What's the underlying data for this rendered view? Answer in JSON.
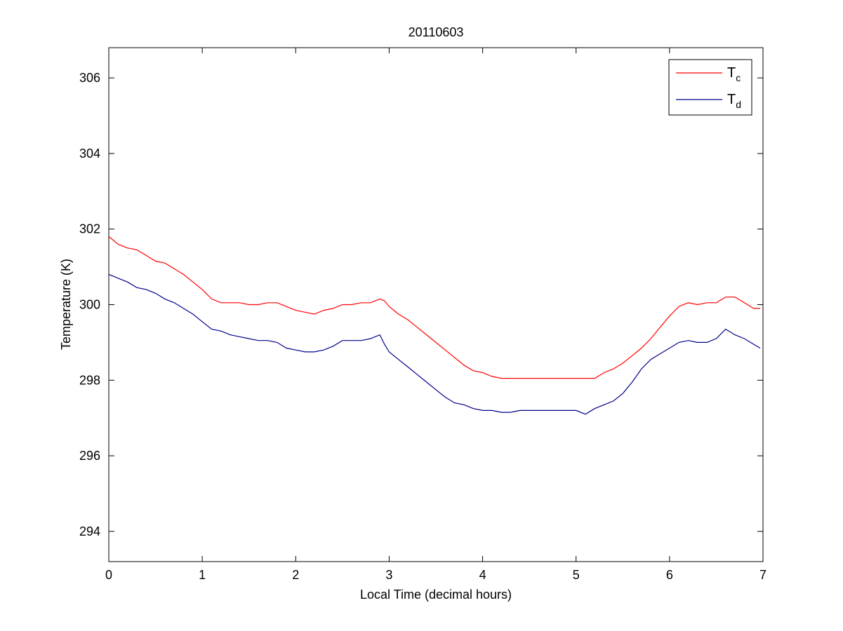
{
  "chart_data": {
    "type": "line",
    "title": "20110603",
    "xlabel": "Local Time (decimal hours)",
    "ylabel": "Temperature (K)",
    "xlim": [
      0,
      7
    ],
    "ylim": [
      293.2,
      306.8
    ],
    "xticks": [
      "0",
      "1",
      "2",
      "3",
      "4",
      "5",
      "6",
      "7"
    ],
    "yticks": [
      "294",
      "296",
      "298",
      "300",
      "302",
      "304",
      "306"
    ],
    "grid": false,
    "legend_position": "top-right",
    "series": [
      {
        "name": "Tc",
        "name_main": "T",
        "name_sub": "c",
        "color": "#ff0000",
        "x": [
          0,
          0.05,
          0.1,
          0.2,
          0.3,
          0.4,
          0.5,
          0.6,
          0.7,
          0.8,
          0.9,
          1.0,
          1.1,
          1.2,
          1.3,
          1.4,
          1.5,
          1.6,
          1.7,
          1.8,
          1.9,
          2.0,
          2.1,
          2.2,
          2.3,
          2.4,
          2.5,
          2.6,
          2.7,
          2.8,
          2.9,
          2.95,
          3.0,
          3.1,
          3.2,
          3.3,
          3.4,
          3.5,
          3.6,
          3.7,
          3.8,
          3.9,
          4.0,
          4.1,
          4.2,
          4.3,
          4.4,
          4.5,
          4.6,
          4.7,
          4.8,
          4.9,
          5.0,
          5.1,
          5.2,
          5.3,
          5.4,
          5.5,
          5.6,
          5.7,
          5.8,
          5.9,
          6.0,
          6.1,
          6.2,
          6.3,
          6.4,
          6.5,
          6.6,
          6.7,
          6.8,
          6.9,
          6.97
        ],
        "y": [
          301.8,
          301.7,
          301.6,
          301.5,
          301.45,
          301.3,
          301.15,
          301.1,
          300.95,
          300.8,
          300.6,
          300.4,
          300.15,
          300.05,
          300.05,
          300.05,
          300.0,
          300.0,
          300.05,
          300.05,
          299.95,
          299.85,
          299.8,
          299.75,
          299.85,
          299.9,
          300.0,
          300.0,
          300.05,
          300.05,
          300.15,
          300.1,
          299.95,
          299.75,
          299.6,
          299.4,
          299.2,
          299.0,
          298.8,
          298.6,
          298.4,
          298.25,
          298.2,
          298.1,
          298.05,
          298.05,
          298.05,
          298.05,
          298.05,
          298.05,
          298.05,
          298.05,
          298.05,
          298.05,
          298.05,
          298.2,
          298.3,
          298.45,
          298.65,
          298.85,
          299.1,
          299.4,
          299.7,
          299.95,
          300.05,
          300.0,
          300.05,
          300.05,
          300.2,
          300.2,
          300.05,
          299.9,
          299.9
        ]
      },
      {
        "name": "Td",
        "name_main": "T",
        "name_sub": "d",
        "color": "#00008b",
        "x": [
          0,
          0.05,
          0.1,
          0.2,
          0.3,
          0.4,
          0.5,
          0.6,
          0.7,
          0.8,
          0.9,
          1.0,
          1.1,
          1.2,
          1.3,
          1.4,
          1.5,
          1.6,
          1.7,
          1.8,
          1.9,
          2.0,
          2.1,
          2.2,
          2.3,
          2.4,
          2.5,
          2.6,
          2.7,
          2.8,
          2.9,
          2.95,
          3.0,
          3.1,
          3.2,
          3.3,
          3.4,
          3.5,
          3.6,
          3.7,
          3.8,
          3.9,
          4.0,
          4.1,
          4.2,
          4.3,
          4.4,
          4.5,
          4.6,
          4.7,
          4.8,
          4.9,
          5.0,
          5.1,
          5.2,
          5.3,
          5.4,
          5.5,
          5.6,
          5.7,
          5.8,
          5.9,
          6.0,
          6.1,
          6.2,
          6.3,
          6.4,
          6.5,
          6.6,
          6.7,
          6.8,
          6.9,
          6.97
        ],
        "y": [
          300.8,
          300.75,
          300.7,
          300.6,
          300.45,
          300.4,
          300.3,
          300.15,
          300.05,
          299.9,
          299.75,
          299.55,
          299.35,
          299.3,
          299.2,
          299.15,
          299.1,
          299.05,
          299.05,
          299.0,
          298.85,
          298.8,
          298.75,
          298.75,
          298.8,
          298.9,
          299.05,
          299.05,
          299.05,
          299.1,
          299.2,
          298.95,
          298.75,
          298.55,
          298.35,
          298.15,
          297.95,
          297.75,
          297.55,
          297.4,
          297.35,
          297.25,
          297.2,
          297.2,
          297.15,
          297.15,
          297.2,
          297.2,
          297.2,
          297.2,
          297.2,
          297.2,
          297.2,
          297.1,
          297.25,
          297.35,
          297.45,
          297.65,
          297.95,
          298.3,
          298.55,
          298.7,
          298.85,
          299.0,
          299.05,
          299.0,
          299.0,
          299.1,
          299.35,
          299.2,
          299.1,
          298.95,
          298.85
        ]
      }
    ]
  }
}
